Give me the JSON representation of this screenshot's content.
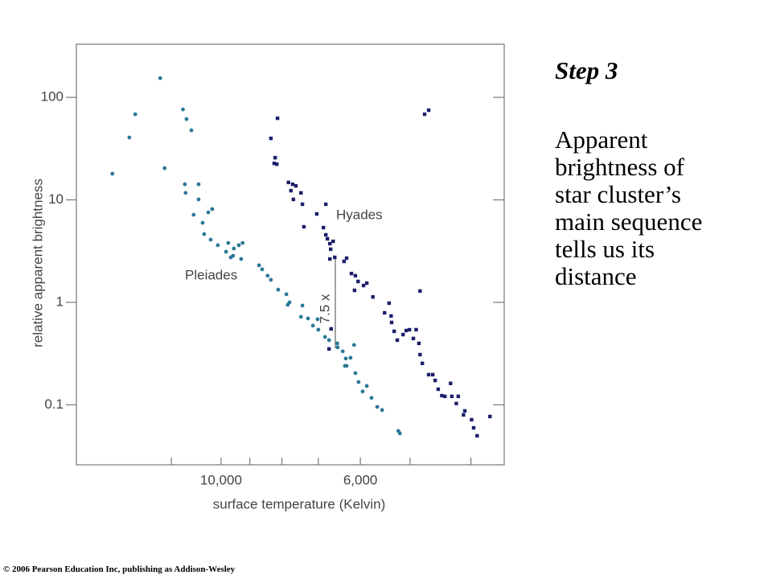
{
  "chart_data": {
    "type": "scatter",
    "x_label": "surface temperature (Kelvin)",
    "y_label": "relative apparent brightness",
    "xscale": "log",
    "yscale": "log",
    "xlim": [
      17000,
      3540
    ],
    "ylim": [
      0.026,
      330
    ],
    "xticks": [
      {
        "value": 10000,
        "label": "10,000"
      },
      {
        "value": 6000,
        "label": "6,000"
      }
    ],
    "xminorticks": [
      12000,
      9000,
      8000,
      7000,
      5000,
      4000
    ],
    "yticks": [
      0.1,
      1,
      10,
      100
    ],
    "annotations": [
      "7.5 x"
    ],
    "series": [
      {
        "name": "Pleiades",
        "color": "#2b7896",
        "marker": "circle",
        "x": [
          14900,
          14000,
          13700,
          12500,
          12300,
          11500,
          11350,
          11150,
          11420,
          11390,
          10860,
          10860,
          11060,
          10700,
          10480,
          10330,
          10640,
          10390,
          10120,
          9740,
          9820,
          9650,
          9540,
          9370,
          9240,
          9290,
          9570,
          8700,
          8600,
          8430,
          8330,
          8110,
          7870,
          7780,
          7830,
          7420,
          7460,
          7270,
          7140,
          7020,
          7000,
          6830,
          6730,
          6520,
          6400,
          6330,
          6140,
          6220,
          6350,
          6310,
          6110,
          6040,
          5950,
          5860,
          5760,
          5640,
          5540,
          5220,
          5190,
          6530
        ],
        "values": [
          18.0,
          40.6,
          68.4,
          154,
          20.4,
          76.3,
          61.4,
          47.7,
          14.2,
          11.7,
          14.2,
          10.1,
          7.16,
          5.97,
          7.55,
          8.13,
          4.64,
          4.09,
          3.61,
          3.8,
          3.12,
          2.75,
          3.35,
          3.61,
          3.8,
          2.65,
          2.85,
          2.3,
          2.1,
          1.82,
          1.66,
          1.33,
          1.2,
          1.0,
          0.947,
          0.931,
          0.722,
          0.697,
          0.593,
          0.684,
          0.541,
          0.46,
          0.428,
          0.364,
          0.333,
          0.283,
          0.384,
          0.288,
          0.24,
          0.24,
          0.204,
          0.167,
          0.135,
          0.153,
          0.117,
          0.0955,
          0.0889,
          0.0556,
          0.0527,
          0.398
        ]
      },
      {
        "name": "Hyades",
        "color": "#1b1f6b",
        "marker": "square",
        "x": [
          8330,
          8130,
          8200,
          8230,
          8150,
          7810,
          7690,
          7740,
          7600,
          7460,
          7670,
          7420,
          7380,
          7040,
          6810,
          6870,
          6770,
          6710,
          6690,
          6810,
          6630,
          6590,
          6710,
          6310,
          6370,
          6200,
          6110,
          6050,
          5930,
          5860,
          6130,
          5730,
          5490,
          5400,
          5360,
          5350,
          5300,
          5240,
          5130,
          5070,
          5010,
          4940,
          4890,
          4840,
          4820,
          4780,
          4670,
          4600,
          4560,
          4510,
          4450,
          4400,
          4310,
          4290,
          4220,
          4190,
          4110,
          4090,
          3990,
          3960,
          3910,
          3730,
          4820,
          4740,
          4670,
          6680,
          6730
        ],
        "values": [
          39.8,
          62.5,
          25.8,
          22.7,
          22.3,
          14.8,
          14.2,
          12.3,
          13.7,
          11.7,
          10.1,
          9.06,
          5.46,
          7.29,
          9.06,
          5.36,
          4.17,
          3.74,
          3.3,
          4.56,
          3.94,
          2.75,
          2.65,
          2.7,
          2.51,
          1.91,
          1.82,
          1.6,
          1.46,
          1.54,
          1.31,
          1.13,
          0.791,
          0.982,
          0.736,
          0.637,
          0.522,
          0.428,
          0.485,
          0.531,
          0.541,
          0.444,
          0.541,
          0.398,
          0.309,
          0.254,
          0.197,
          0.197,
          0.173,
          0.142,
          0.123,
          0.121,
          0.162,
          0.121,
          0.103,
          0.121,
          0.0798,
          0.0873,
          0.0716,
          0.0597,
          0.0499,
          0.0769,
          1.29,
          68.4,
          75.0,
          0.551,
          0.351
        ]
      }
    ]
  },
  "slide": {
    "heading": "Step 3",
    "body": [
      "Apparent",
      "brightness of",
      "star cluster’s",
      "main sequence",
      "tells us its",
      "distance"
    ],
    "footer": "© 2006 Pearson Education Inc, publishing as Addison-Wesley"
  }
}
